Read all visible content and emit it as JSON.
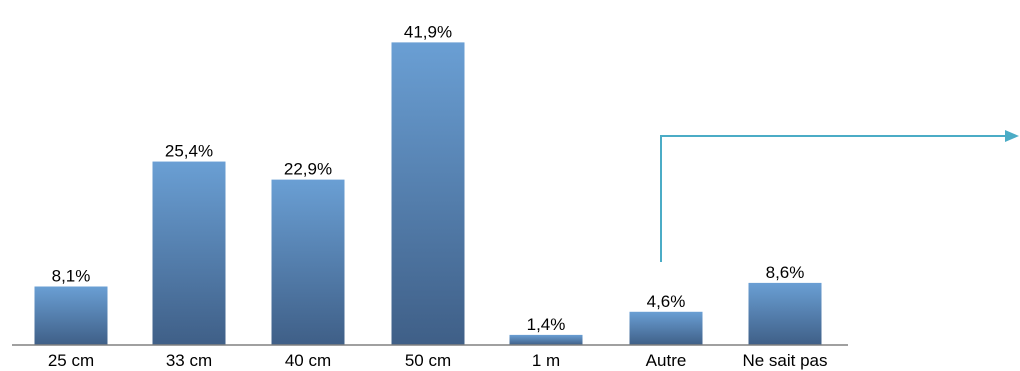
{
  "chart_data": {
    "type": "bar",
    "categories": [
      "25 cm",
      "33 cm",
      "40 cm",
      "50 cm",
      "1 m",
      "Autre",
      "Ne sait pas"
    ],
    "values": [
      8.1,
      25.4,
      22.9,
      41.9,
      1.4,
      4.6,
      8.6
    ],
    "value_labels": [
      "8,1%",
      "25,4%",
      "22,9%",
      "41,9%",
      "1,4%",
      "4,6%",
      "8,6%"
    ],
    "unit": "%",
    "ylim": [
      0,
      43.2
    ],
    "grid": false,
    "legend": "none",
    "colors": {
      "bar_top": "#6a9fd4",
      "bar_bottom": "#3f5f87",
      "axis": "#808080",
      "arrow": "#4bacc6"
    },
    "annotation": {
      "type": "arrow",
      "from_category": "Autre",
      "direction": "right"
    }
  }
}
